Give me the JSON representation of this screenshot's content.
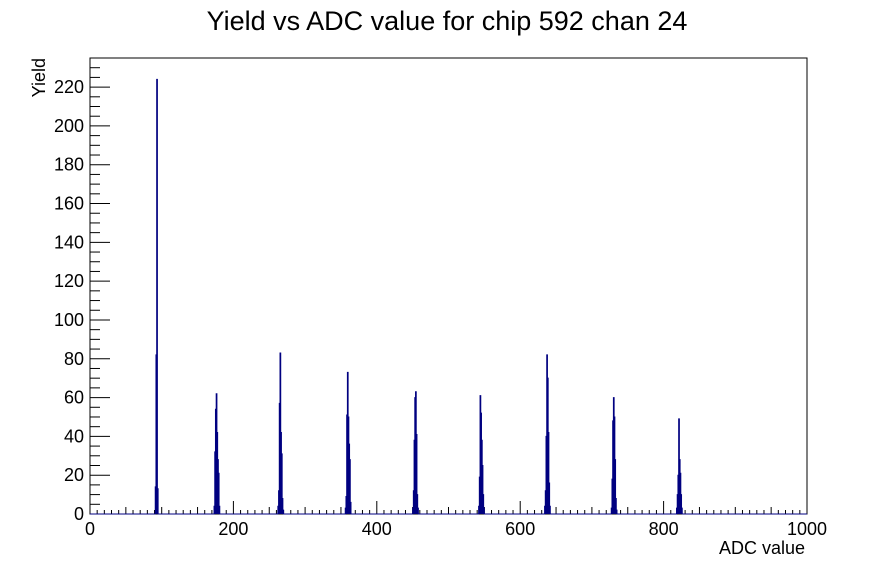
{
  "chart_data": {
    "type": "histogram",
    "title": "Yield vs ADC value for chip 592 chan 24",
    "xlabel": "ADC value",
    "ylabel": "Yield",
    "xlim": [
      0,
      1000
    ],
    "ylim": [
      0,
      235
    ],
    "x_ticks": [
      0,
      200,
      400,
      600,
      800,
      1000
    ],
    "y_ticks": [
      0,
      20,
      40,
      60,
      80,
      100,
      120,
      140,
      160,
      180,
      200,
      220
    ],
    "grid": false,
    "legend": "none",
    "line_color": "#000080",
    "bins": [
      {
        "x": 91,
        "y": 14
      },
      {
        "x": 92,
        "y": 82
      },
      {
        "x": 93,
        "y": 224
      },
      {
        "x": 94,
        "y": 13
      },
      {
        "x": 173,
        "y": 4
      },
      {
        "x": 174,
        "y": 32
      },
      {
        "x": 175,
        "y": 54
      },
      {
        "x": 176,
        "y": 62
      },
      {
        "x": 177,
        "y": 42
      },
      {
        "x": 178,
        "y": 28
      },
      {
        "x": 179,
        "y": 21
      },
      {
        "x": 180,
        "y": 4
      },
      {
        "x": 262,
        "y": 4
      },
      {
        "x": 263,
        "y": 12
      },
      {
        "x": 264,
        "y": 57
      },
      {
        "x": 265,
        "y": 83
      },
      {
        "x": 266,
        "y": 42
      },
      {
        "x": 267,
        "y": 31
      },
      {
        "x": 268,
        "y": 8
      },
      {
        "x": 269,
        "y": 2
      },
      {
        "x": 356,
        "y": 3
      },
      {
        "x": 357,
        "y": 9
      },
      {
        "x": 358,
        "y": 51
      },
      {
        "x": 359,
        "y": 73
      },
      {
        "x": 360,
        "y": 50
      },
      {
        "x": 361,
        "y": 36
      },
      {
        "x": 362,
        "y": 28
      },
      {
        "x": 363,
        "y": 6
      },
      {
        "x": 450,
        "y": 3
      },
      {
        "x": 451,
        "y": 12
      },
      {
        "x": 452,
        "y": 38
      },
      {
        "x": 453,
        "y": 60
      },
      {
        "x": 454,
        "y": 63
      },
      {
        "x": 455,
        "y": 41
      },
      {
        "x": 456,
        "y": 10
      },
      {
        "x": 457,
        "y": 3
      },
      {
        "x": 542,
        "y": 4
      },
      {
        "x": 543,
        "y": 19
      },
      {
        "x": 544,
        "y": 61
      },
      {
        "x": 545,
        "y": 52
      },
      {
        "x": 546,
        "y": 38
      },
      {
        "x": 547,
        "y": 25
      },
      {
        "x": 548,
        "y": 10
      },
      {
        "x": 549,
        "y": 3
      },
      {
        "x": 634,
        "y": 4
      },
      {
        "x": 635,
        "y": 12
      },
      {
        "x": 636,
        "y": 40
      },
      {
        "x": 637,
        "y": 82
      },
      {
        "x": 638,
        "y": 70
      },
      {
        "x": 639,
        "y": 42
      },
      {
        "x": 640,
        "y": 16
      },
      {
        "x": 641,
        "y": 4
      },
      {
        "x": 727,
        "y": 3
      },
      {
        "x": 728,
        "y": 18
      },
      {
        "x": 729,
        "y": 48
      },
      {
        "x": 730,
        "y": 60
      },
      {
        "x": 731,
        "y": 50
      },
      {
        "x": 732,
        "y": 28
      },
      {
        "x": 733,
        "y": 8
      },
      {
        "x": 734,
        "y": 2
      },
      {
        "x": 818,
        "y": 3
      },
      {
        "x": 819,
        "y": 10
      },
      {
        "x": 820,
        "y": 20
      },
      {
        "x": 821,
        "y": 49
      },
      {
        "x": 822,
        "y": 28
      },
      {
        "x": 823,
        "y": 21
      },
      {
        "x": 824,
        "y": 10
      },
      {
        "x": 825,
        "y": 3
      }
    ]
  }
}
